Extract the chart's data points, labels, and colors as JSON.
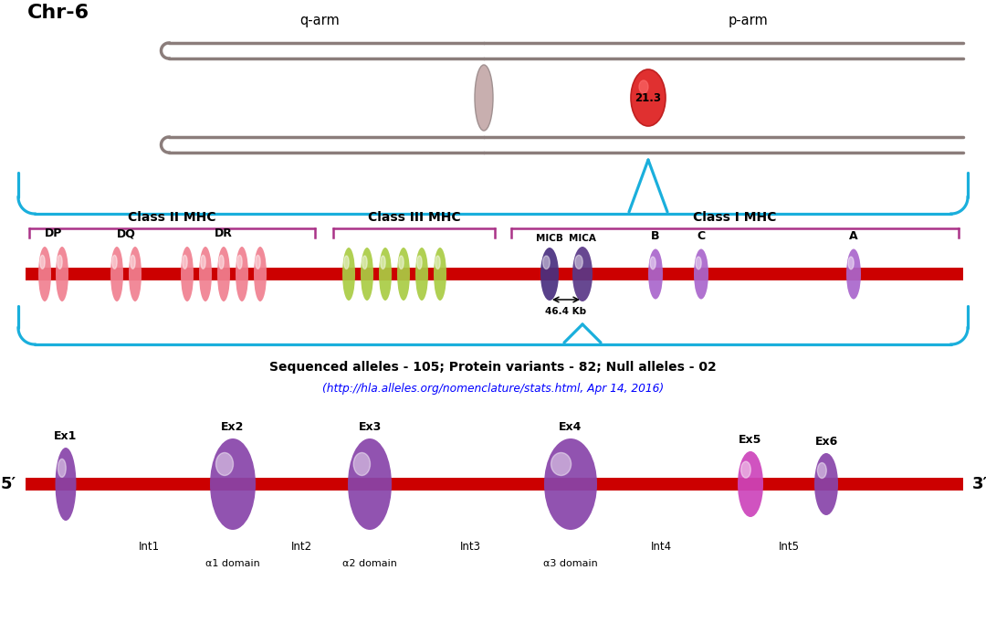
{
  "title": "Chr-6",
  "chr_color": "#8B7D7B",
  "centromere_fill": "#C8AFAF",
  "red_ellipse_color": "#E03030",
  "band_label": "21.3",
  "q_arm_label": "q-arm",
  "p_arm_label": "p-arm",
  "cyan_color": "#1AAFDC",
  "class_ii_label": "Class II MHC",
  "class_iii_label": "Class III MHC",
  "class_i_label": "Class I MHC",
  "bracket_color": "#AA3388",
  "dp_label": "DP",
  "dq_label": "DQ",
  "dr_label": "DR",
  "micb_label": "MICB",
  "mica_label": "MICA",
  "b_label": "B",
  "c_label": "C",
  "a_label": "A",
  "dist_label": "46.4 Kb",
  "pink_color": "#F08090",
  "olive_color": "#AACC44",
  "purple_dark": "#5A3A88",
  "purple_med": "#7755AA",
  "purple_light": "#AA66CC",
  "red_line_color": "#CC0000",
  "seq_alleles_text": "Sequenced alleles - 105; Protein variants - 82; Null alleles - 02",
  "url_text": "(http://hla.alleles.org/nomenclature/stats.html, Apr 14, 2016)",
  "ex_labels": [
    "Ex1",
    "Ex2",
    "Ex3",
    "Ex4",
    "Ex5",
    "Ex6"
  ],
  "int_labels": [
    "Int1",
    "Int2",
    "Int3",
    "Int4",
    "Int5"
  ],
  "domain_labels": [
    "α1 domain",
    "α2 domain",
    "α3 domain"
  ],
  "five_prime": "5′",
  "three_prime": "3′",
  "bg_color": "#FFFFFF"
}
